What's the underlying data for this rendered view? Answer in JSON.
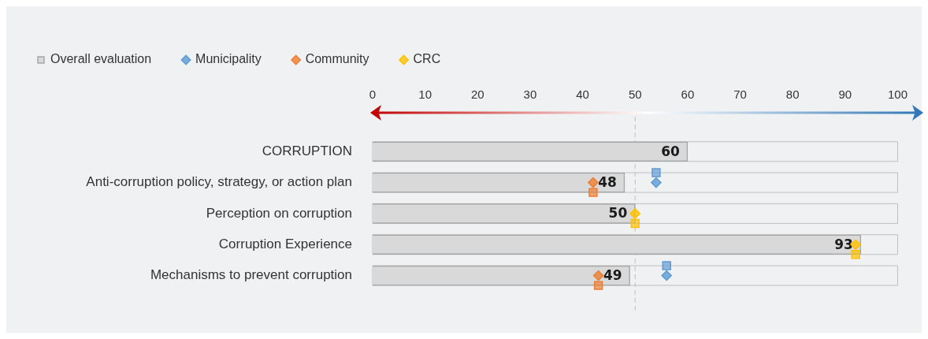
{
  "chart_data": {
    "type": "bar",
    "orientation": "horizontal",
    "categories": [
      "CORRUPTION",
      "Anti-corruption policy, strategy, or action plan",
      "Perception on corruption",
      "Corruption Experience",
      "Mechanisms to prevent corruption"
    ],
    "series": [
      {
        "name": "Overall evaluation",
        "color": "#d9d9d9",
        "values": [
          60,
          48,
          50,
          93,
          49
        ],
        "value_labels": [
          "60",
          "48",
          "50",
          "93",
          "49"
        ]
      },
      {
        "name": "Municipality",
        "type": "scatter",
        "marker": "diamond",
        "color": "#5b9bd5",
        "values": [
          null,
          54,
          null,
          null,
          56
        ]
      },
      {
        "name": "Community",
        "type": "scatter",
        "marker": "diamond",
        "color": "#ed7d31",
        "values": [
          null,
          42,
          null,
          null,
          43
        ]
      },
      {
        "name": "CRC",
        "type": "scatter",
        "marker": "diamond",
        "color": "#ffc000",
        "values": [
          null,
          null,
          50,
          92,
          null
        ]
      },
      {
        "type": "scatter",
        "marker": "square",
        "color": "#5b9bd5",
        "values": [
          null,
          54,
          null,
          null,
          56
        ]
      },
      {
        "type": "scatter",
        "marker": "square",
        "color": "#ed7d31",
        "values": [
          null,
          42,
          null,
          null,
          43
        ]
      },
      {
        "type": "scatter",
        "marker": "square",
        "color": "#ffc000",
        "values": [
          null,
          null,
          50,
          92,
          null
        ]
      }
    ],
    "xlim": [
      0,
      100
    ],
    "xticks": [
      0,
      10,
      20,
      30,
      40,
      50,
      60,
      70,
      80,
      90,
      100
    ],
    "ref_lines": [
      {
        "axis": "x",
        "value": 50,
        "line_style": "dashed",
        "color": "#bfbfbf"
      }
    ],
    "legend": "top left",
    "grid": false
  }
}
